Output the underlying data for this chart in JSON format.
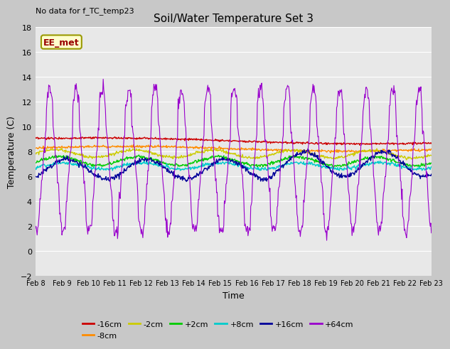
{
  "title": "Soil/Water Temperature Set 3",
  "no_data_text": "No data for f_TC_temp23",
  "xlabel": "Time",
  "ylabel": "Temperature (C)",
  "ylim": [
    -2,
    18
  ],
  "yticks": [
    -2,
    0,
    2,
    4,
    6,
    8,
    10,
    12,
    14,
    16,
    18
  ],
  "x_labels": [
    "Feb 8",
    "Feb 9",
    "Feb 10",
    "Feb 11",
    "Feb 12",
    "Feb 13",
    "Feb 14",
    "Feb 15",
    "Feb 16",
    "Feb 17",
    "Feb 18",
    "Feb 19",
    "Feb 20",
    "Feb 21",
    "Feb 22",
    "Feb 23"
  ],
  "series_colors": [
    "#cc0000",
    "#ff8c00",
    "#cccc00",
    "#00cc00",
    "#00cccc",
    "#000099",
    "#9900cc"
  ],
  "series_labels": [
    "-16cm",
    "-8cm",
    "-2cm",
    "+2cm",
    "+8cm",
    "+16cm",
    "+64cm"
  ],
  "plot_bg_color": "#e8e8e8",
  "fig_bg_color": "#c8c8c8",
  "grid_color": "#ffffff",
  "legend_box_color": "#ffffcc",
  "legend_box_edge": "#999900",
  "annotation_text": "EE_met",
  "title_fontsize": 11,
  "label_fontsize": 9,
  "tick_fontsize": 8,
  "xtick_fontsize": 7
}
